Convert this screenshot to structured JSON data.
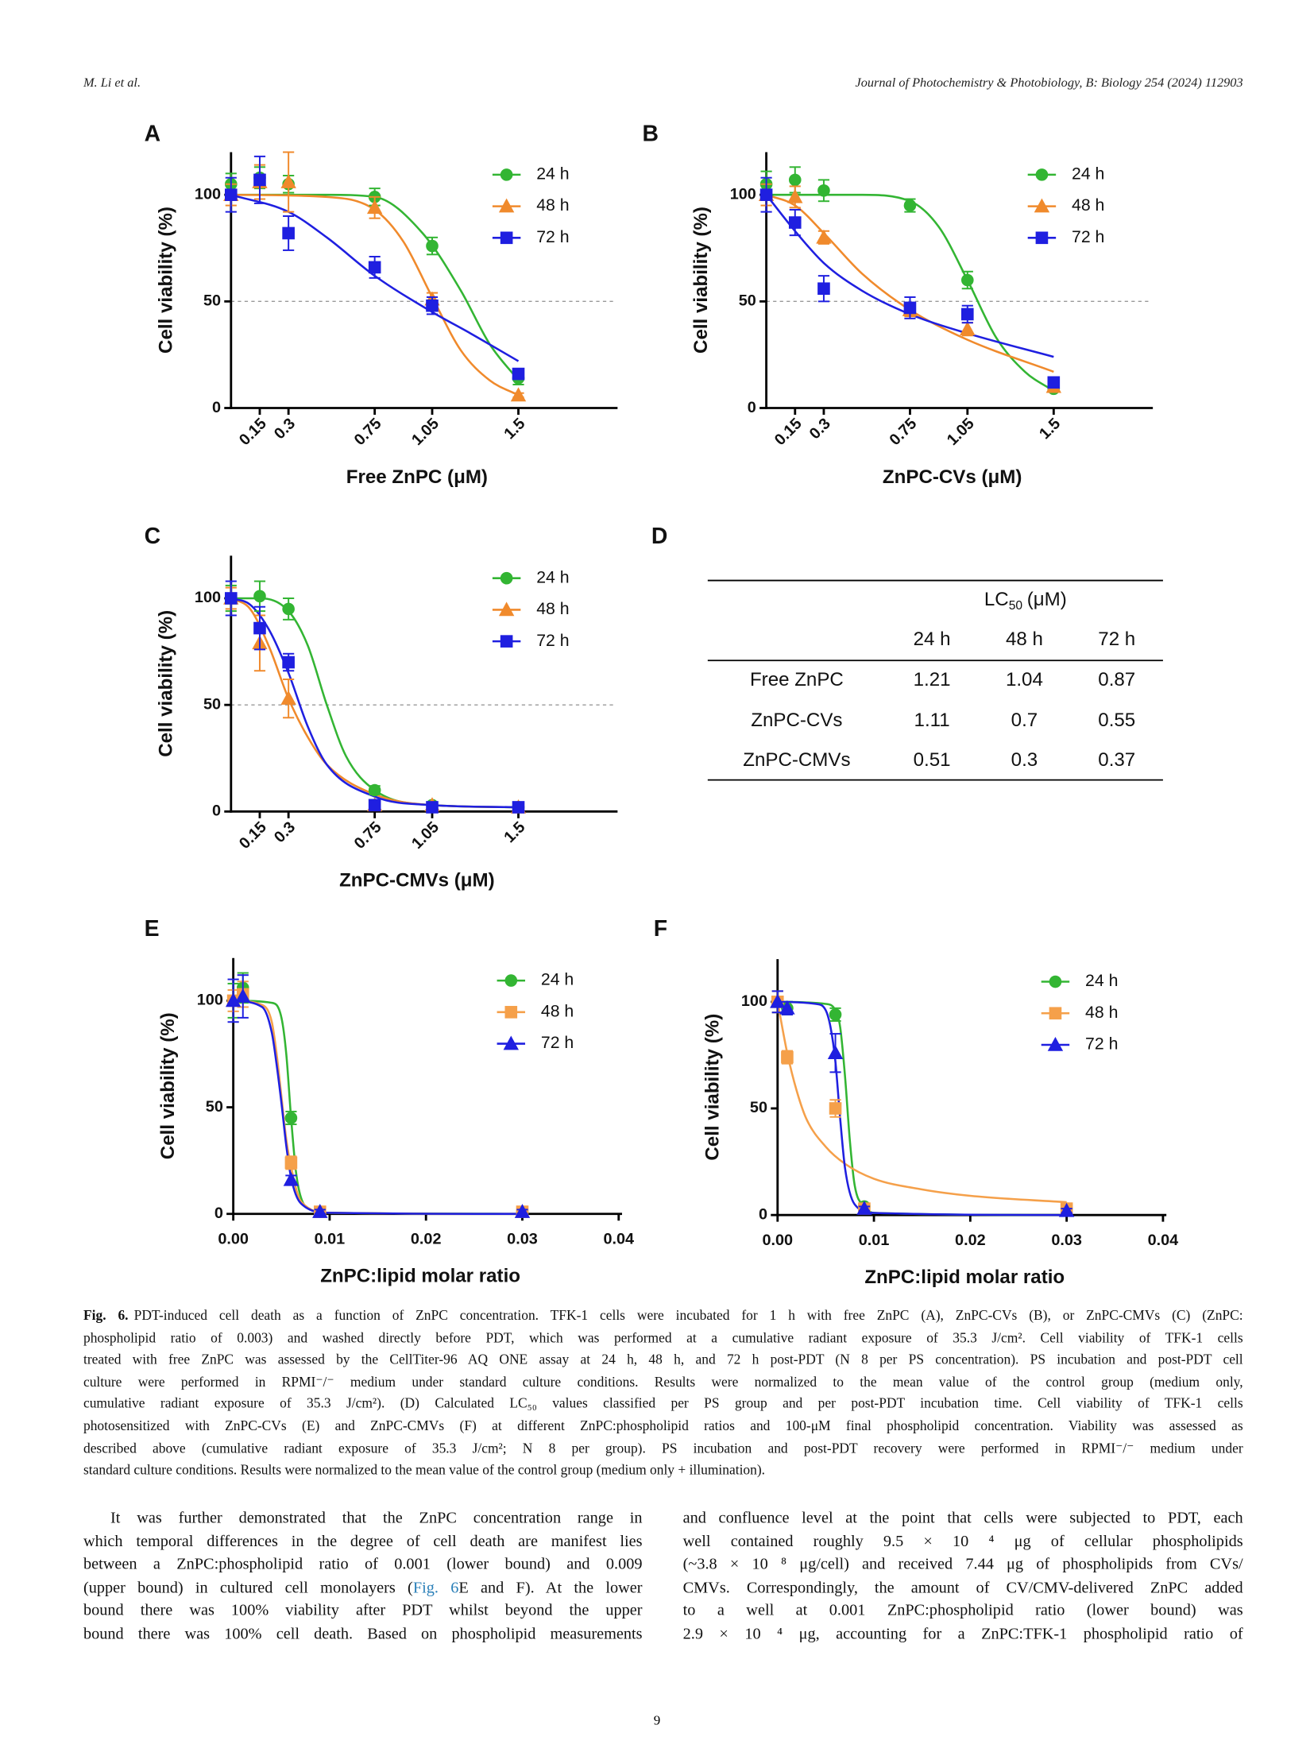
{
  "header": {
    "authors": "M. Li et al.",
    "journal": "Journal of Photochemistry & Photobiology, B: Biology 254 (2024) 112903"
  },
  "chart_data": [
    {
      "type": "scatter",
      "panel": "A",
      "xlabel": "Free ZnPC (μM)",
      "ylabel": "Cell viability (%)",
      "x": [
        0,
        0.15,
        0.3,
        0.75,
        1.05,
        1.5
      ],
      "xlim": [
        0,
        2
      ],
      "xticks": [
        0.15,
        0.3,
        0.75,
        1.05,
        1.5
      ],
      "xtick_rotation": 45,
      "ylim": [
        0,
        120
      ],
      "yticks": [
        0,
        50,
        100
      ],
      "refline": 50,
      "legend": "upper right",
      "series": [
        {
          "name": "24 h",
          "color": "#33b533",
          "marker": "circle",
          "values": [
            105,
            108,
            105,
            99,
            76,
            14
          ],
          "errors": [
            5,
            5,
            4,
            4,
            4,
            3
          ],
          "fit": {
            "x": [
              0,
              0.5,
              0.75,
              1.0,
              1.2,
              1.35,
              1.5
            ],
            "y": [
              100,
              100,
              99,
              82,
              55,
              30,
              13
            ]
          }
        },
        {
          "name": "48 h",
          "color": "#f08a2c",
          "marker": "triangle",
          "values": [
            100,
            106,
            106,
            94,
            51,
            6
          ],
          "errors": [
            5,
            8,
            14,
            5,
            3,
            1
          ],
          "fit": {
            "x": [
              0,
              0.5,
              0.75,
              0.9,
              1.05,
              1.2,
              1.35,
              1.5
            ],
            "y": [
              100,
              99,
              93,
              78,
              52,
              27,
              13,
              6
            ]
          }
        },
        {
          "name": "72 h",
          "color": "#1f1fe0",
          "marker": "square",
          "values": [
            100,
            107,
            82,
            66,
            48,
            16
          ],
          "errors": [
            8,
            11,
            8,
            5,
            4,
            2
          ],
          "fit": {
            "x": [
              0,
              0.3,
              0.5,
              0.75,
              1.05,
              1.25,
              1.5
            ],
            "y": [
              100,
              92,
              80,
              62,
              45,
              35,
              22
            ]
          }
        }
      ]
    },
    {
      "type": "scatter",
      "panel": "B",
      "xlabel": "ZnPC-CVs (μM)",
      "ylabel": "Cell viability (%)",
      "x": [
        0,
        0.15,
        0.3,
        0.75,
        1.05,
        1.5
      ],
      "xlim": [
        0,
        2
      ],
      "xticks": [
        0.15,
        0.3,
        0.75,
        1.05,
        1.5
      ],
      "xtick_rotation": 45,
      "ylim": [
        0,
        120
      ],
      "yticks": [
        0,
        50,
        100
      ],
      "refline": 50,
      "legend": "upper right",
      "series": [
        {
          "name": "24 h",
          "color": "#33b533",
          "marker": "circle",
          "values": [
            105,
            107,
            102,
            95,
            60,
            9
          ],
          "errors": [
            6,
            6,
            5,
            3,
            4,
            1
          ],
          "fit": {
            "x": [
              0,
              0.5,
              0.75,
              0.9,
              1.05,
              1.2,
              1.35,
              1.5
            ],
            "y": [
              100,
              100,
              97,
              85,
              60,
              33,
              17,
              8
            ]
          }
        },
        {
          "name": "48 h",
          "color": "#f08a2c",
          "marker": "triangle",
          "values": [
            100,
            99,
            80,
            46,
            37,
            10
          ],
          "errors": [
            5,
            5,
            3,
            3,
            3,
            1
          ],
          "fit": {
            "x": [
              0,
              0.15,
              0.3,
              0.5,
              0.75,
              1.05,
              1.5
            ],
            "y": [
              100,
              95,
              82,
              63,
              46,
              32,
              17
            ]
          }
        },
        {
          "name": "72 h",
          "color": "#1f1fe0",
          "marker": "square",
          "values": [
            100,
            87,
            56,
            47,
            44,
            12
          ],
          "errors": [
            8,
            6,
            6,
            5,
            4,
            1
          ],
          "fit": {
            "x": [
              0,
              0.15,
              0.3,
              0.5,
              0.75,
              1.05,
              1.5
            ],
            "y": [
              100,
              83,
              68,
              55,
              44,
              35,
              24
            ]
          }
        }
      ]
    },
    {
      "type": "scatter",
      "panel": "C",
      "xlabel": "ZnPC-CMVs (μM)",
      "ylabel": "Cell viability (%)",
      "x": [
        0,
        0.15,
        0.3,
        0.75,
        1.05,
        1.5
      ],
      "xlim": [
        0,
        2
      ],
      "xticks": [
        0.15,
        0.3,
        0.75,
        1.05,
        1.5
      ],
      "xtick_rotation": 45,
      "ylim": [
        0,
        120
      ],
      "yticks": [
        0,
        50,
        100
      ],
      "refline": 50,
      "legend": "upper right",
      "series": [
        {
          "name": "24 h",
          "color": "#33b533",
          "marker": "circle",
          "values": [
            100,
            101,
            95,
            10,
            3,
            2
          ],
          "errors": [
            6,
            7,
            5,
            2,
            1,
            1
          ],
          "fit": {
            "x": [
              0,
              0.15,
              0.3,
              0.4,
              0.5,
              0.6,
              0.75,
              1.05,
              1.5
            ],
            "y": [
              100,
              100,
              94,
              78,
              50,
              26,
              10,
              3,
              2
            ]
          }
        },
        {
          "name": "48 h",
          "color": "#f08a2c",
          "marker": "triangle",
          "values": [
            100,
            79,
            53,
            3,
            3,
            2
          ],
          "errors": [
            5,
            13,
            9,
            1,
            1,
            1
          ],
          "fit": {
            "x": [
              0,
              0.1,
              0.2,
              0.3,
              0.4,
              0.5,
              0.75,
              1.05,
              1.5
            ],
            "y": [
              100,
              95,
              77,
              53,
              35,
              22,
              8,
              3,
              2
            ]
          }
        },
        {
          "name": "72 h",
          "color": "#1f1fe0",
          "marker": "square",
          "values": [
            100,
            86,
            70,
            3,
            2,
            2
          ],
          "errors": [
            8,
            10,
            4,
            1,
            1,
            1
          ],
          "fit": {
            "x": [
              0,
              0.1,
              0.2,
              0.3,
              0.4,
              0.5,
              0.75,
              1.05,
              1.5
            ],
            "y": [
              100,
              97,
              85,
              65,
              40,
              22,
              7,
              3,
              2
            ]
          }
        }
      ]
    },
    {
      "type": "scatter",
      "panel": "E",
      "xlabel": "ZnPC:lipid molar ratio",
      "ylabel": "Cell viability (%)",
      "x": [
        0,
        0.001,
        0.006,
        0.009,
        0.03
      ],
      "xlim": [
        0,
        0.04
      ],
      "xticks": [
        {
          "value": 0,
          "label": "0.00"
        },
        0.01,
        0.02,
        0.03,
        0.04
      ],
      "xtick_rotation": 0,
      "ylim": [
        0,
        120
      ],
      "yticks": [
        0,
        50,
        100
      ],
      "legend": "upper right",
      "series": [
        {
          "name": "24 h",
          "color": "#33b533",
          "marker": "circle",
          "values": [
            100,
            106,
            45,
            1,
            1
          ],
          "errors": [
            8,
            7,
            3,
            1,
            1
          ],
          "fit": {
            "x": [
              0,
              0.004,
              0.005,
              0.0055,
              0.006,
              0.0065,
              0.007,
              0.008,
              0.01,
              0.03
            ],
            "y": [
              100,
              99,
              92,
              75,
              45,
              20,
              8,
              2,
              0.5,
              0
            ]
          }
        },
        {
          "name": "48 h",
          "color": "#f5a04a",
          "marker": "square",
          "values": [
            100,
            103,
            24,
            1,
            1
          ],
          "errors": [
            5,
            6,
            3,
            1,
            1
          ],
          "fit": {
            "x": [
              0,
              0.003,
              0.004,
              0.0045,
              0.005,
              0.0055,
              0.006,
              0.007,
              0.01,
              0.03
            ],
            "y": [
              100,
              98,
              90,
              75,
              55,
              35,
              22,
              6,
              0.5,
              0
            ]
          }
        },
        {
          "name": "72 h",
          "color": "#1f1fe0",
          "marker": "triangle",
          "values": [
            100,
            102,
            16,
            1,
            1
          ],
          "errors": [
            10,
            10,
            2,
            1,
            1
          ],
          "fit": {
            "x": [
              0,
              0.003,
              0.004,
              0.0045,
              0.005,
              0.0055,
              0.006,
              0.007,
              0.01,
              0.03
            ],
            "y": [
              100,
              97,
              85,
              70,
              52,
              32,
              17,
              5,
              0.5,
              0
            ]
          }
        }
      ]
    },
    {
      "type": "scatter",
      "panel": "F",
      "xlabel": "ZnPC:lipid molar ratio",
      "ylabel": "Cell viability (%)",
      "x": [
        0,
        0.001,
        0.006,
        0.009,
        0.03
      ],
      "xlim": [
        0,
        0.04
      ],
      "xticks": [
        {
          "value": 0,
          "label": "0.00"
        },
        0.01,
        0.02,
        0.03,
        0.04
      ],
      "xtick_rotation": 0,
      "ylim": [
        0,
        120
      ],
      "yticks": [
        0,
        50,
        100
      ],
      "legend": "upper right",
      "series": [
        {
          "name": "24 h",
          "color": "#33b533",
          "marker": "circle",
          "values": [
            100,
            97,
            94,
            4,
            3
          ],
          "errors": [
            5,
            3,
            3,
            1,
            1
          ],
          "fit": {
            "x": [
              0,
              0.005,
              0.006,
              0.0065,
              0.007,
              0.0075,
              0.008,
              0.009,
              0.01,
              0.03
            ],
            "y": [
              100,
              99,
              96,
              88,
              65,
              35,
              14,
              4,
              1,
              0
            ]
          }
        },
        {
          "name": "48 h",
          "color": "#f5a04a",
          "marker": "square",
          "values": [
            100,
            74,
            50,
            3,
            3
          ],
          "errors": [
            5,
            3,
            4,
            1,
            1
          ],
          "fit": {
            "x": [
              0,
              0.001,
              0.002,
              0.003,
              0.005,
              0.007,
              0.01,
              0.015,
              0.02,
              0.03
            ],
            "y": [
              100,
              76,
              58,
              45,
              32,
              24,
              17,
              12,
              9,
              6
            ]
          }
        },
        {
          "name": "72 h",
          "color": "#1f1fe0",
          "marker": "triangle",
          "values": [
            100,
            97,
            76,
            3,
            2
          ],
          "errors": [
            5,
            3,
            9,
            1,
            1
          ],
          "fit": {
            "x": [
              0,
              0.004,
              0.005,
              0.0055,
              0.006,
              0.0065,
              0.007,
              0.008,
              0.01,
              0.03
            ],
            "y": [
              100,
              99,
              96,
              88,
              72,
              45,
              22,
              5,
              1,
              0
            ]
          }
        }
      ]
    }
  ],
  "table": {
    "panel": "D",
    "header": {
      "label": "LC",
      "subscript": "50",
      "unit": "(μM)"
    },
    "columns": [
      "24 h",
      "48 h",
      "72 h"
    ],
    "rows": [
      {
        "label": "Free ZnPC",
        "values": [
          1.21,
          1.04,
          0.87
        ]
      },
      {
        "label": "ZnPC-CVs",
        "values": [
          1.11,
          0.7,
          0.55
        ]
      },
      {
        "label": "ZnPC-CMVs",
        "values": [
          0.51,
          0.3,
          0.37
        ]
      }
    ]
  },
  "caption": {
    "label": "Fig. 6.",
    "lines": [
      "PDT-induced cell death as a function of ZnPC concentration. TFK-1 cells were incubated for 1 h with free ZnPC (A), ZnPC-CVs (B), or ZnPC-CMVs (C) (ZnPC:",
      "phospholipid ratio of 0.003) and washed directly before PDT, which was performed at a cumulative radiant exposure of 35.3 J/cm². Cell viability of TFK-1 cells",
      "treated with free ZnPC was assessed by the CellTiter-96 AQ ONE assay at 24 h, 48 h, and 72 h post-PDT (N    8 per PS concentration). PS incubation and post-PDT cell",
      "culture were performed in RPMI⁻/⁻ medium under standard culture conditions. Results were normalized to the mean value of the control group (medium only,",
      "cumulative radiant exposure of 35.3 J/cm²). (D) Calculated LC₅₀ values classified per PS group and per post-PDT incubation time. Cell viability of TFK-1 cells",
      "photosensitized with ZnPC-CVs (E) and ZnPC-CMVs (F) at different ZnPC:phospholipid ratios and 100-μM final phospholipid concentration. Viability was assessed as",
      "described above (cumulative radiant exposure of 35.3 J/cm²; N    8 per group). PS incubation and post-PDT recovery were performed in RPMI⁻/⁻ medium under",
      "standard culture conditions. Results were normalized to the mean value of the control group (medium only + illumination)."
    ]
  },
  "body": {
    "left": [
      "It was further demonstrated that the ZnPC concentration range in",
      "which temporal differences in the degree of cell death are manifest lies",
      "between a ZnPC:phospholipid ratio of 0.001 (lower bound) and 0.009",
      [
        "(upper bound) in cultured cell monolayers (",
        "Fig. 6",
        "E and F). At the lower"
      ],
      "bound there was 100% viability after PDT whilst beyond the upper",
      "bound there was 100% cell death. Based on phospholipid measurements"
    ],
    "right": [
      "and confluence level at the point that cells were subjected to PDT, each",
      "well contained roughly 9.5 × 10 ⁴ μg of cellular phospholipids",
      "(~3.8 × 10 ⁸ μg/cell) and received 7.44 μg of phospholipids from CVs/",
      "CMVs. Correspondingly, the amount of CV/CMV-delivered ZnPC added",
      "to a well at 0.001 ZnPC:phospholipid ratio (lower bound) was",
      "2.9 × 10 ⁴ μg, accounting for a ZnPC:TFK-1 phospholipid ratio of"
    ]
  },
  "page_number": 9
}
